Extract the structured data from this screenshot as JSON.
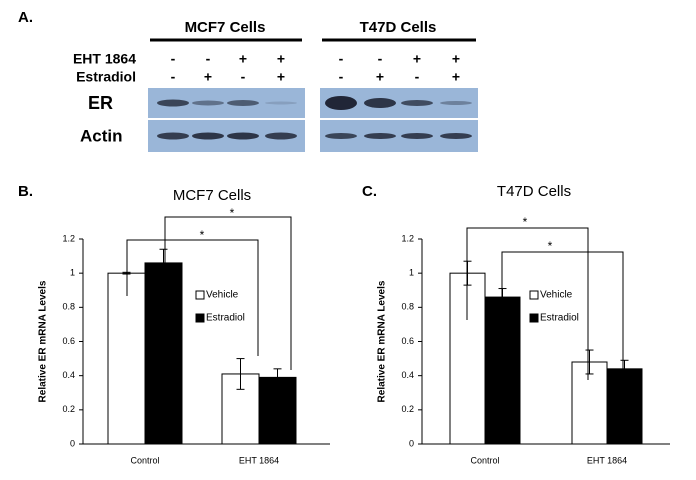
{
  "panel_a": {
    "label": "A.",
    "groups": [
      "MCF7 Cells",
      "T47D Cells"
    ],
    "rows": [
      {
        "label": "EHT 1864",
        "signs": [
          "-",
          "-",
          "+",
          "+",
          "-",
          "-",
          "+",
          "+"
        ]
      },
      {
        "label": "Estradiol",
        "signs": [
          "-",
          "+",
          "-",
          "+",
          "-",
          "+",
          "-",
          "+"
        ]
      }
    ],
    "blots": [
      "ER",
      "Actin"
    ]
  },
  "chart_data": [
    {
      "panel_label": "B.",
      "type": "bar",
      "title": "MCF7 Cells",
      "y_label": "Relative ER mRNA Levels",
      "categories": [
        "Control",
        "EHT 1864"
      ],
      "series": [
        {
          "name": "Vehicle",
          "color": "#ffffff",
          "values": [
            1.0,
            0.41
          ],
          "errors": [
            0.005,
            0.09
          ]
        },
        {
          "name": "Estradiol",
          "color": "#000000",
          "values": [
            1.06,
            0.39
          ],
          "errors": [
            0.08,
            0.05
          ]
        }
      ],
      "ylim": [
        0,
        1.2
      ],
      "yticks": [
        0,
        0.2,
        0.4,
        0.6,
        0.8,
        1,
        1.2
      ],
      "annotations": [
        "*",
        "*"
      ]
    },
    {
      "panel_label": "C.",
      "type": "bar",
      "title": "T47D Cells",
      "y_label": "Relative ER mRNA Levels",
      "categories": [
        "Control",
        "EHT 1864"
      ],
      "series": [
        {
          "name": "Vehicle",
          "color": "#ffffff",
          "values": [
            1.0,
            0.48
          ],
          "errors": [
            0.07,
            0.07
          ]
        },
        {
          "name": "Estradiol",
          "color": "#000000",
          "values": [
            0.86,
            0.44
          ],
          "errors": [
            0.05,
            0.05
          ]
        }
      ],
      "ylim": [
        0,
        1.2
      ],
      "yticks": [
        0,
        0.2,
        0.4,
        0.6,
        0.8,
        1,
        1.2
      ],
      "annotations": [
        "*",
        "*"
      ]
    }
  ]
}
